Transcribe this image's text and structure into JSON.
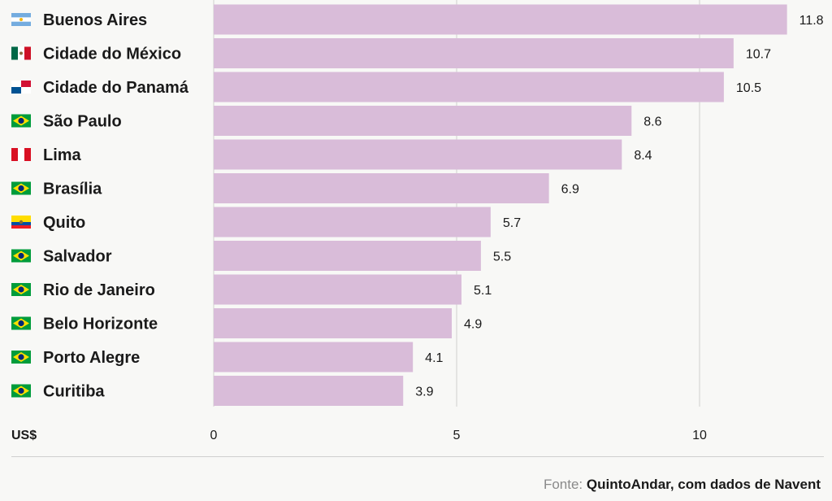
{
  "chart_data": {
    "type": "bar",
    "orientation": "horizontal",
    "categories": [
      "Buenos Aires",
      "Cidade do México",
      "Cidade do Panamá",
      "São Paulo",
      "Lima",
      "Brasília",
      "Quito",
      "Salvador",
      "Rio de Janeiro",
      "Belo Horizonte",
      "Porto Alegre",
      "Curitiba"
    ],
    "flags": [
      "argentina-flag-icon",
      "mexico-flag-icon",
      "panama-flag-icon",
      "brazil-flag-icon",
      "peru-flag-icon",
      "brazil-flag-icon",
      "ecuador-flag-icon",
      "brazil-flag-icon",
      "brazil-flag-icon",
      "brazil-flag-icon",
      "brazil-flag-icon",
      "brazil-flag-icon"
    ],
    "values": [
      11.8,
      10.7,
      10.5,
      8.6,
      8.4,
      6.9,
      5.7,
      5.5,
      5.1,
      4.9,
      4.1,
      3.9
    ],
    "value_labels": [
      "11.8",
      "10.7",
      "10.5",
      "8.6",
      "8.4",
      "6.9",
      "5.7",
      "5.5",
      "5.1",
      "4.9",
      "4.1",
      "3.9"
    ],
    "xlim": [
      0,
      12.5
    ],
    "xticks": [
      0,
      5,
      10
    ],
    "xtick_labels": [
      "0",
      "5",
      "10"
    ],
    "unit_label": "US$",
    "grid": true,
    "bar_color": "#d9bcd9"
  },
  "source": {
    "prefix": "Fonte:",
    "text": "QuintoAndar, com dados de Navent"
  }
}
